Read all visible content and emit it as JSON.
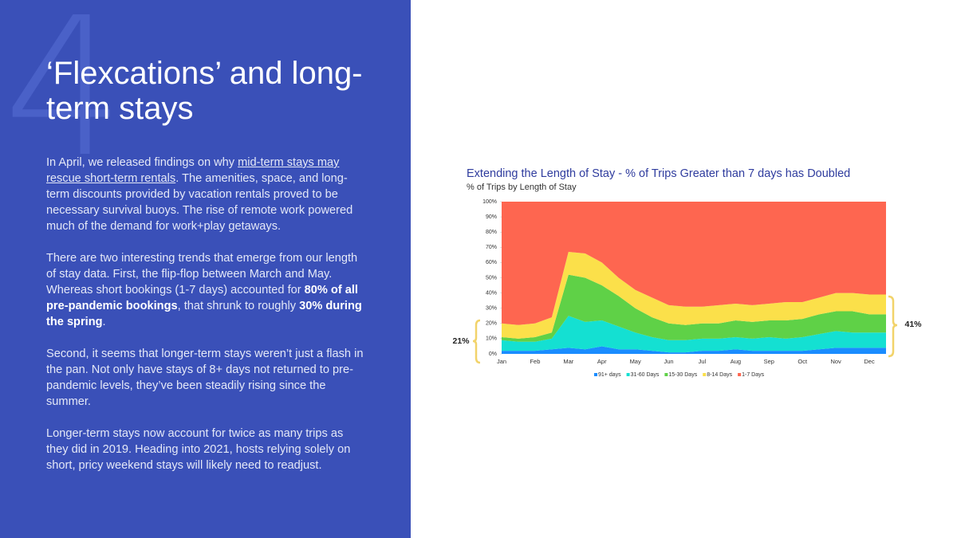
{
  "section_number": "4",
  "title": "‘Flexcations’ and long-term stays",
  "paragraphs": [
    [
      {
        "text": "In April, we released findings on why "
      },
      {
        "text": "mid-term stays may rescue short-term rentals",
        "link": true
      },
      {
        "text": ". The amenities, space, and long-term discounts provided by vacation rentals proved to be necessary survival buoys. The rise of remote work powered much of the demand for work+play getaways."
      }
    ],
    [
      {
        "text": "There are two interesting trends that emerge from our length of stay data. First, the flip-flop between March and May. Whereas short bookings (1-7 days) accounted for "
      },
      {
        "text": "80% of all pre-pandemic bookings",
        "bold": true
      },
      {
        "text": ", that shrunk to roughly "
      },
      {
        "text": "30% during the spring",
        "bold": true
      },
      {
        "text": "."
      }
    ],
    [
      {
        "text": "Second, it seems that longer-term stays weren’t just a flash in the pan. Not only have stays of 8+ days not returned to pre-pandemic levels, they’ve been steadily rising since the summer."
      }
    ],
    [
      {
        "text": "Longer-term stays now account for twice as many trips as they did in 2019. Heading into 2021, hosts relying solely on short, pricy weekend stays will likely need to readjust."
      }
    ]
  ],
  "chart_data": {
    "type": "stacked_area",
    "title": "Extending the Length of Stay - % of Trips Greater than 7 days has Doubled",
    "subtitle": "% of Trips by Length of Stay",
    "categories": [
      "Jan",
      null,
      "Feb",
      null,
      "Mar",
      null,
      "Apr",
      null,
      "May",
      null,
      "Jun",
      null,
      "Jul",
      null,
      "Aug",
      null,
      "Sep",
      null,
      "Oct",
      null,
      "Nov",
      null,
      "Dec",
      null
    ],
    "series": [
      {
        "name": "91+ days",
        "color": "#1a8cff",
        "values": [
          2,
          2,
          2,
          3,
          4,
          3,
          5,
          3,
          3,
          2,
          1,
          1,
          2,
          2,
          3,
          2,
          2,
          2,
          2,
          3,
          4,
          4,
          4,
          4
        ]
      },
      {
        "name": "31-60 Days",
        "color": "#14e0d2",
        "values": [
          7,
          6,
          6,
          7,
          21,
          18,
          17,
          15,
          11,
          9,
          8,
          8,
          8,
          8,
          8,
          8,
          9,
          8,
          9,
          10,
          11,
          10,
          10,
          10
        ]
      },
      {
        "name": "15-30 Days",
        "color": "#5fd147",
        "values": [
          2,
          2,
          3,
          4,
          27,
          29,
          23,
          20,
          16,
          13,
          11,
          10,
          10,
          10,
          11,
          11,
          11,
          12,
          12,
          13,
          13,
          14,
          12,
          12
        ]
      },
      {
        "name": "8-14 Days",
        "color": "#fbe04a",
        "values": [
          9,
          9,
          9,
          10,
          15,
          16,
          15,
          12,
          12,
          13,
          12,
          12,
          11,
          12,
          11,
          11,
          11,
          12,
          11,
          11,
          12,
          12,
          13,
          13
        ]
      },
      {
        "name": "1-7 Days",
        "color": "#fe6650",
        "values": [
          80,
          81,
          80,
          76,
          33,
          34,
          40,
          50,
          58,
          63,
          68,
          69,
          69,
          68,
          67,
          68,
          67,
          66,
          66,
          63,
          60,
          60,
          61,
          61
        ]
      }
    ],
    "ylim": [
      0,
      100
    ],
    "yticks": [
      {
        "value": 0,
        "label": "0%"
      },
      {
        "value": 10,
        "label": "10%"
      },
      {
        "value": 20,
        "label": "20%"
      },
      {
        "value": 30,
        "label": "30%"
      },
      {
        "value": 40,
        "label": "40%"
      },
      {
        "value": 50,
        "label": "50%"
      },
      {
        "value": 60,
        "label": "60%"
      },
      {
        "value": 70,
        "label": "70%"
      },
      {
        "value": 80,
        "label": "80%"
      },
      {
        "value": 90,
        "label": "90%"
      },
      {
        "value": 100,
        "label": "100%"
      }
    ],
    "annotations": [
      "21%",
      "41%"
    ],
    "legend": "bottom"
  }
}
